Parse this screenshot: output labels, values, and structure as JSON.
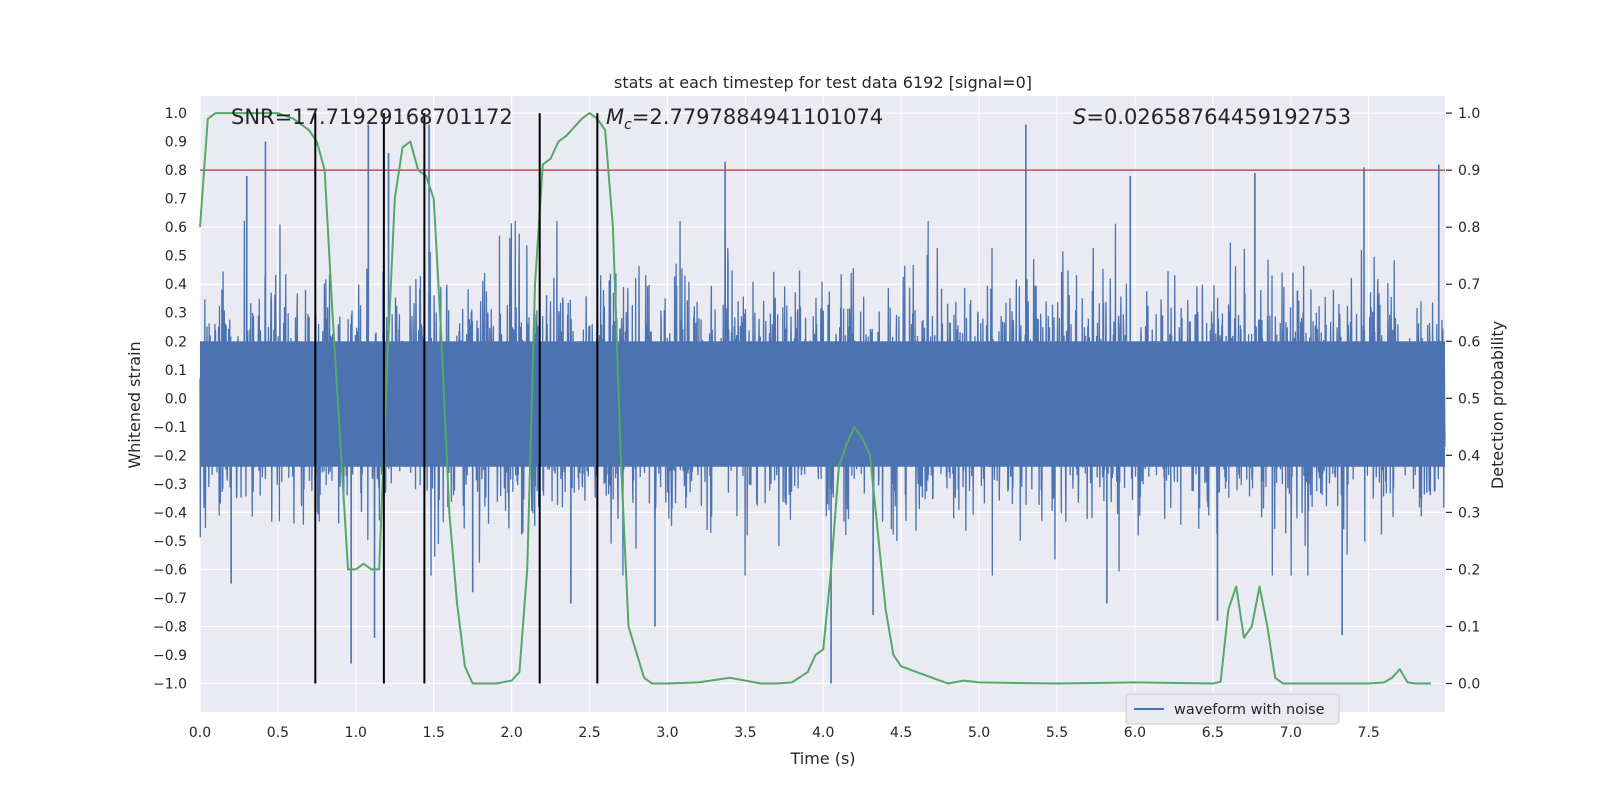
{
  "colors": {
    "plot_bg": "#eaeaf2",
    "grid": "#ffffff",
    "waveform": "#4c72b0",
    "probability": "#55a868",
    "threshold": "#c44e52",
    "markers": "#000000"
  },
  "chart_data": {
    "type": "line",
    "title": "stats at each timestep for test data 6192 [signal=0]",
    "xlabel": "Time (s)",
    "ylabel_left": "Whitened strain",
    "ylabel_right": "Detection probability",
    "xlim": [
      0,
      7.99
    ],
    "ylim_left": [
      -1.1,
      1.06
    ],
    "ylim_right": [
      -0.05,
      1.03
    ],
    "grid": true,
    "legend_position": "lower-right",
    "x_ticks": [
      "0.0",
      "0.5",
      "1.0",
      "1.5",
      "2.0",
      "2.5",
      "3.0",
      "3.5",
      "4.0",
      "4.5",
      "5.0",
      "5.5",
      "6.0",
      "6.5",
      "7.0",
      "7.5"
    ],
    "y_left_ticks": [
      "1.0",
      "0.9",
      "0.8",
      "0.7",
      "0.6",
      "0.5",
      "0.4",
      "0.3",
      "0.2",
      "0.1",
      "0.0",
      "−0.1",
      "−0.2",
      "−0.3",
      "−0.4",
      "−0.5",
      "−0.6",
      "−0.7",
      "−0.8",
      "−0.9",
      "−1.0"
    ],
    "y_right_ticks": [
      "1.0",
      "0.9",
      "0.8",
      "0.7",
      "0.6",
      "0.5",
      "0.4",
      "0.3",
      "0.2",
      "0.1",
      "0.0"
    ],
    "annotations": {
      "snr": "SNR=17.71929168701172",
      "mc": "=2.7797884941101074",
      "s": "=0.02658764459192753"
    },
    "series": [
      {
        "name": "waveform with noise",
        "axis": "left",
        "color": "#4c72b0",
        "summary": "dense noise waveform, envelope approx ±0.4 with spikes",
        "spikes": [
          {
            "x": 0.42,
            "y": 0.9
          },
          {
            "x": 0.3,
            "y": 0.78
          },
          {
            "x": 1.08,
            "y": 0.96
          },
          {
            "x": 1.47,
            "y": 0.96
          },
          {
            "x": 1.21,
            "y": 0.86
          },
          {
            "x": 2.55,
            "y": 0.82
          },
          {
            "x": 3.37,
            "y": 0.83
          },
          {
            "x": 5.3,
            "y": 0.96
          },
          {
            "x": 5.97,
            "y": 0.78
          },
          {
            "x": 6.77,
            "y": 0.79
          },
          {
            "x": 7.47,
            "y": 0.81
          },
          {
            "x": 7.95,
            "y": 0.82
          },
          {
            "x": 0.97,
            "y": -0.93
          },
          {
            "x": 1.12,
            "y": -0.84
          },
          {
            "x": 2.38,
            "y": -0.72
          },
          {
            "x": 2.92,
            "y": -0.8
          },
          {
            "x": 4.05,
            "y": -1.0
          },
          {
            "x": 4.32,
            "y": -0.76
          },
          {
            "x": 6.53,
            "y": -0.78
          },
          {
            "x": 7.33,
            "y": -0.83
          },
          {
            "x": 0.2,
            "y": -0.65
          },
          {
            "x": 5.82,
            "y": -0.72
          },
          {
            "x": 1.75,
            "y": -0.68
          }
        ]
      },
      {
        "name": "",
        "axis": "right",
        "color": "#55a868",
        "x": [
          0.0,
          0.05,
          0.1,
          0.2,
          0.3,
          0.4,
          0.5,
          0.6,
          0.65,
          0.7,
          0.75,
          0.8,
          0.85,
          0.95,
          1.0,
          1.05,
          1.1,
          1.15,
          1.2,
          1.25,
          1.3,
          1.35,
          1.4,
          1.45,
          1.5,
          1.55,
          1.6,
          1.65,
          1.7,
          1.75,
          1.8,
          1.9,
          2.0,
          2.05,
          2.1,
          2.15,
          2.2,
          2.25,
          2.3,
          2.35,
          2.45,
          2.5,
          2.55,
          2.6,
          2.65,
          2.7,
          2.75,
          2.85,
          2.9,
          3.0,
          3.2,
          3.4,
          3.5,
          3.6,
          3.7,
          3.8,
          3.9,
          3.95,
          4.0,
          4.05,
          4.1,
          4.15,
          4.2,
          4.25,
          4.3,
          4.4,
          4.45,
          4.5,
          4.6,
          4.7,
          4.8,
          4.9,
          5.0,
          5.2,
          5.5,
          5.8,
          6.0,
          6.5,
          6.55,
          6.6,
          6.65,
          6.7,
          6.75,
          6.8,
          6.85,
          6.9,
          6.95,
          7.0,
          7.5,
          7.6,
          7.65,
          7.7,
          7.75,
          7.8,
          7.9
        ],
        "values": [
          0.8,
          0.99,
          1.0,
          1.0,
          1.0,
          1.0,
          1.0,
          0.99,
          0.98,
          0.97,
          0.95,
          0.9,
          0.65,
          0.2,
          0.2,
          0.21,
          0.2,
          0.2,
          0.55,
          0.85,
          0.94,
          0.95,
          0.9,
          0.89,
          0.85,
          0.6,
          0.3,
          0.14,
          0.03,
          0.0,
          0.0,
          0.0,
          0.005,
          0.02,
          0.2,
          0.7,
          0.91,
          0.92,
          0.95,
          0.96,
          0.99,
          1.0,
          0.99,
          0.97,
          0.8,
          0.4,
          0.1,
          0.01,
          0.0,
          0.0,
          0.002,
          0.01,
          0.005,
          0.0,
          0.0,
          0.002,
          0.02,
          0.05,
          0.06,
          0.2,
          0.38,
          0.42,
          0.45,
          0.43,
          0.4,
          0.13,
          0.05,
          0.03,
          0.02,
          0.01,
          0.0,
          0.005,
          0.002,
          0.001,
          0.0,
          0.001,
          0.002,
          0.0,
          0.003,
          0.13,
          0.17,
          0.08,
          0.1,
          0.17,
          0.1,
          0.01,
          0.0,
          0.0,
          0.0,
          0.002,
          0.01,
          0.025,
          0.002,
          0.0,
          0.0
        ]
      }
    ],
    "threshold": {
      "axis": "right",
      "y": 0.9,
      "color": "#c44e52"
    },
    "vlines": [
      0.74,
      1.18,
      1.44,
      2.18,
      2.55
    ]
  }
}
